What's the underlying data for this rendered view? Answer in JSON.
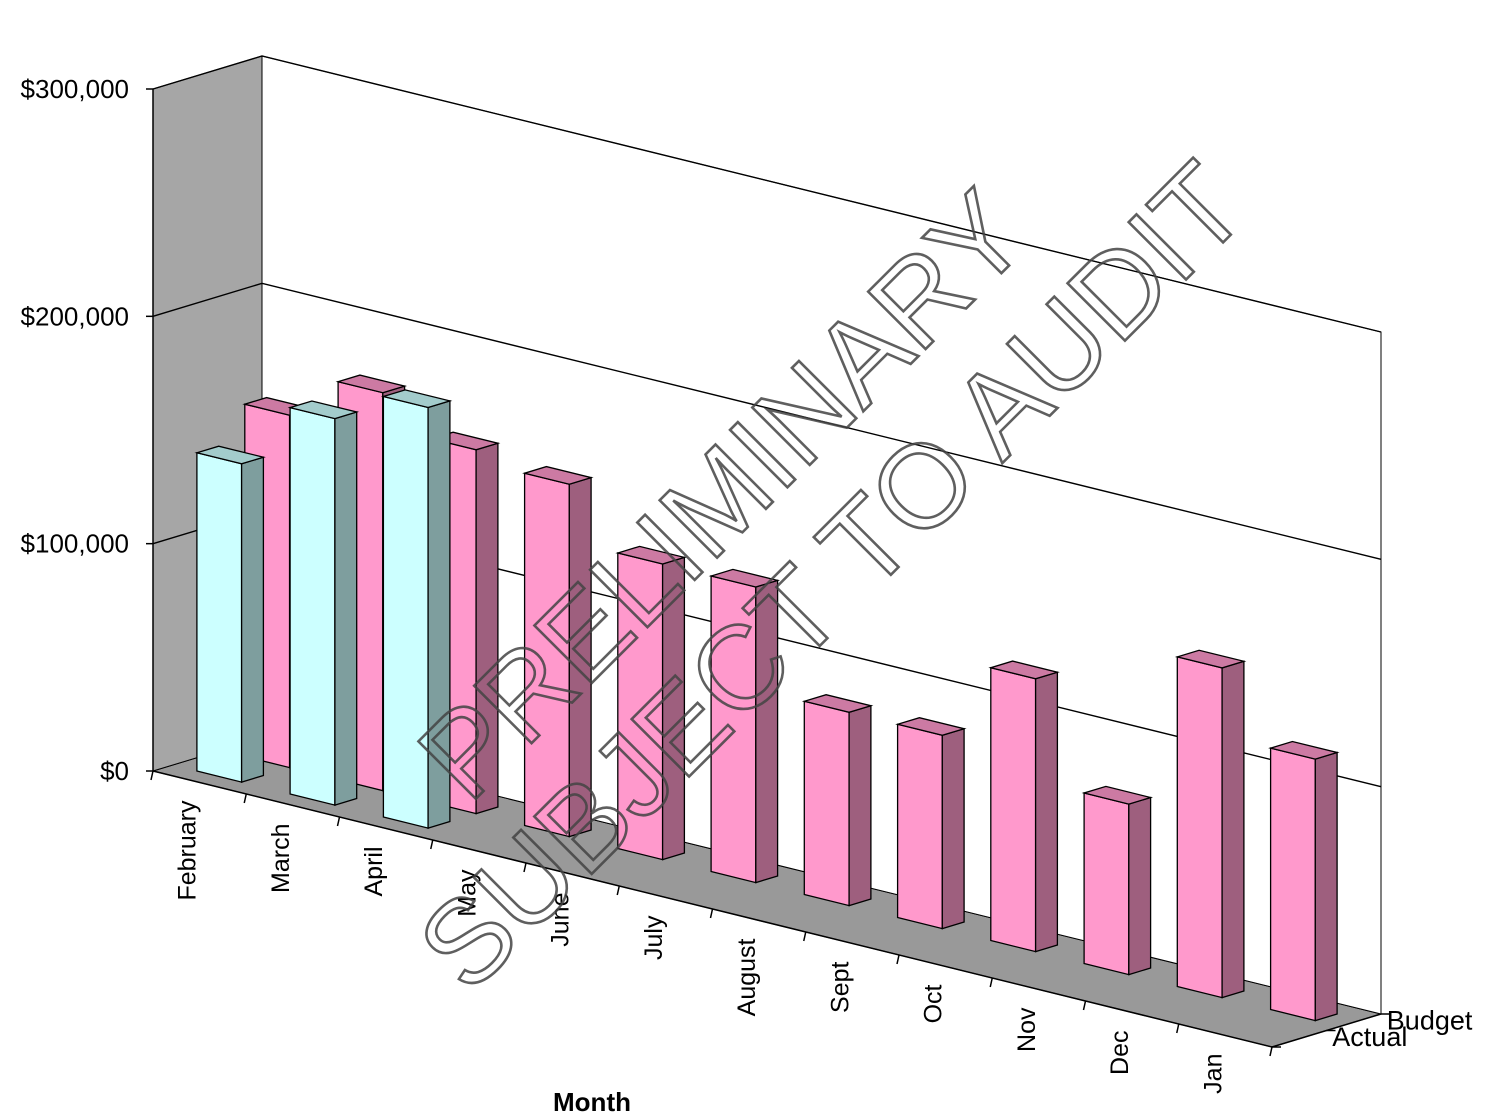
{
  "chart_data": {
    "type": "bar",
    "subtype": "3d-column",
    "xlabel": "Month",
    "categories": [
      "February",
      "March",
      "April",
      "May",
      "June",
      "July",
      "August",
      "Sept",
      "Oct",
      "Nov",
      "Dec",
      "Jan"
    ],
    "series": [
      {
        "name": "Actual",
        "color": "#ccffff",
        "values": [
          140000,
          170000,
          185000,
          null,
          null,
          null,
          null,
          null,
          null,
          null,
          null,
          null
        ]
      },
      {
        "name": "Budget",
        "color": "#ff99cc",
        "values": [
          155000,
          175000,
          160000,
          155000,
          130000,
          130000,
          85000,
          85000,
          120000,
          75000,
          145000,
          115000
        ]
      }
    ],
    "y_ticks": [
      "$0",
      "$100,000",
      "$200,000",
      "$300,000"
    ],
    "ylim": [
      0,
      300000
    ],
    "grid": true
  },
  "watermark": {
    "line1": "PRELIMINARY",
    "line2": "SUBJECT TO AUDIT"
  },
  "colors": {
    "wall": "#ffffff",
    "side_wall": "#a6a6a6",
    "floor": "#999999",
    "actual": "#ccffff",
    "budget": "#ff99cc"
  }
}
